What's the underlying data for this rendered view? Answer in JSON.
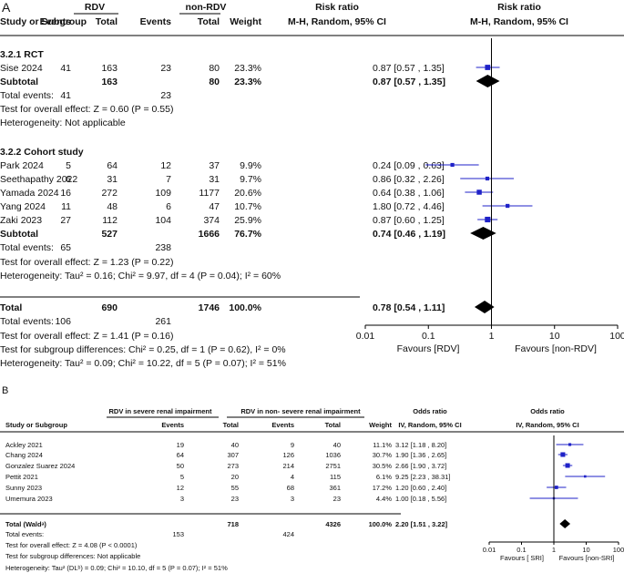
{
  "chart_data": [
    {
      "type": "forest",
      "panel_label": "A",
      "header": {
        "group1": "RDV",
        "group2": "non-RDV",
        "study_col": "Study or Subgroup",
        "events": "Events",
        "total": "Total",
        "weight": "Weight",
        "effect_title": "Risk ratio",
        "effect_method": "M-H, Random, 95% CI",
        "plot_title": "Risk ratio",
        "plot_method": "M-H, Random, 95% CI"
      },
      "subgroups": [
        {
          "title": "3.2.1 RCT",
          "studies": [
            {
              "name": "Sise 2024",
              "e1": "41",
              "n1": "163",
              "e2": "23",
              "n2": "80",
              "weight": "23.3%",
              "ci_text": "0.87 [0.57 , 1.35]",
              "est": 0.87,
              "lo": 0.57,
              "hi": 1.35
            }
          ],
          "subtotal": {
            "label": "Subtotal",
            "n1": "163",
            "n2": "80",
            "weight": "23.3%",
            "ci_text": "0.87 [0.57 , 1.35]",
            "est": 0.87,
            "lo": 0.57,
            "hi": 1.35
          },
          "total_events": {
            "label": "Total events:",
            "e1": "41",
            "e2": "23"
          },
          "notes": [
            "Test for overall effect: Z = 0.60 (P = 0.55)",
            "Heterogeneity: Not applicable"
          ]
        },
        {
          "title": "3.2.2 Cohort study",
          "studies": [
            {
              "name": "Park 2024",
              "e1": "5",
              "n1": "64",
              "e2": "12",
              "n2": "37",
              "weight": "9.9%",
              "ci_text": "0.24 [0.09 , 0.63]",
              "est": 0.24,
              "lo": 0.09,
              "hi": 0.63
            },
            {
              "name": "Seethapathy 2022",
              "e1": "6",
              "n1": "31",
              "e2": "7",
              "n2": "31",
              "weight": "9.7%",
              "ci_text": "0.86 [0.32 , 2.26]",
              "est": 0.86,
              "lo": 0.32,
              "hi": 2.26
            },
            {
              "name": "Yamada 2024",
              "e1": "16",
              "n1": "272",
              "e2": "109",
              "n2": "1177",
              "weight": "20.6%",
              "ci_text": "0.64 [0.38 , 1.06]",
              "est": 0.64,
              "lo": 0.38,
              "hi": 1.06
            },
            {
              "name": "Yang 2024",
              "e1": "11",
              "n1": "48",
              "e2": "6",
              "n2": "47",
              "weight": "10.7%",
              "ci_text": "1.80 [0.72 , 4.46]",
              "est": 1.8,
              "lo": 0.72,
              "hi": 4.46
            },
            {
              "name": "Zaki 2023",
              "e1": "27",
              "n1": "112",
              "e2": "104",
              "n2": "374",
              "weight": "25.9%",
              "ci_text": "0.87 [0.60 , 1.25]",
              "est": 0.87,
              "lo": 0.6,
              "hi": 1.25
            }
          ],
          "subtotal": {
            "label": "Subtotal",
            "n1": "527",
            "n2": "1666",
            "weight": "76.7%",
            "ci_text": "0.74 [0.46 , 1.19]",
            "est": 0.74,
            "lo": 0.46,
            "hi": 1.19
          },
          "total_events": {
            "label": "Total events:",
            "e1": "65",
            "e2": "238"
          },
          "notes": [
            "Test for overall effect: Z = 1.23 (P = 0.22)",
            "Heterogeneity: Tau² = 0.16; Chi² = 9.97, df = 4 (P = 0.04); I² = 60%"
          ]
        }
      ],
      "total": {
        "label": "Total",
        "n1": "690",
        "n2": "1746",
        "weight": "100.0%",
        "ci_text": "0.78 [0.54 , 1.11]",
        "est": 0.78,
        "lo": 0.54,
        "hi": 1.11
      },
      "total_events": {
        "label": "Total events:",
        "e1": "106",
        "e2": "261"
      },
      "footer_notes": [
        "Test for overall effect: Z = 1.41 (P = 0.16)",
        "Test for subgroup differences: Chi² = 0.25, df = 1 (P = 0.62), I² = 0%",
        "Heterogeneity: Tau² = 0.09; Chi² = 10.22, df = 5 (P = 0.07); I² = 51%"
      ],
      "axis": {
        "scale": "log",
        "ticks": [
          0.01,
          0.1,
          1,
          10,
          100
        ],
        "tick_labels": [
          "0.01",
          "0.1",
          "1",
          "10",
          "100"
        ],
        "xlim": [
          0.01,
          100
        ],
        "favours_left": "Favours [RDV]",
        "favours_right": "Favours [non-RDV]"
      },
      "colors": {
        "marker": "#1f22c8",
        "diamond": "#000000"
      }
    },
    {
      "type": "forest",
      "panel_label": "B",
      "header": {
        "group1": "RDV in severe renal impairment",
        "group2": "RDV in non- severe renal impairment",
        "study_col": "Study or Subgroup",
        "events": "Events",
        "total": "Total",
        "weight": "Weight",
        "effect_title": "Odds ratio",
        "effect_method": "IV, Random, 95% CI",
        "plot_title": "Odds ratio",
        "plot_method": "IV, Random, 95% CI"
      },
      "studies": [
        {
          "name": "Ackley 2021",
          "e1": "19",
          "n1": "40",
          "e2": "9",
          "n2": "40",
          "weight": "11.1%",
          "ci_text": "3.12 [1.18 , 8.20]",
          "est": 3.12,
          "lo": 1.18,
          "hi": 8.2
        },
        {
          "name": "Chang 2024",
          "e1": "64",
          "n1": "307",
          "e2": "126",
          "n2": "1036",
          "weight": "30.7%",
          "ci_text": "1.90 [1.36 , 2.65]",
          "est": 1.9,
          "lo": 1.36,
          "hi": 2.65
        },
        {
          "name": "Gonzalez Suarez 2024",
          "e1": "50",
          "n1": "273",
          "e2": "214",
          "n2": "2751",
          "weight": "30.5%",
          "ci_text": "2.66 [1.90 , 3.72]",
          "est": 2.66,
          "lo": 1.9,
          "hi": 3.72
        },
        {
          "name": "Pettit 2021",
          "e1": "5",
          "n1": "20",
          "e2": "4",
          "n2": "115",
          "weight": "6.1%",
          "ci_text": "9.25 [2.23 , 38.31]",
          "est": 9.25,
          "lo": 2.23,
          "hi": 38.31
        },
        {
          "name": "Sunny 2023",
          "e1": "12",
          "n1": "55",
          "e2": "68",
          "n2": "361",
          "weight": "17.2%",
          "ci_text": "1.20 [0.60 , 2.40]",
          "est": 1.2,
          "lo": 0.6,
          "hi": 2.4
        },
        {
          "name": "Umemura 2023",
          "e1": "3",
          "n1": "23",
          "e2": "3",
          "n2": "23",
          "weight": "4.4%",
          "ci_text": "1.00 [0.18 , 5.56]",
          "est": 1.0,
          "lo": 0.18,
          "hi": 5.56
        }
      ],
      "total": {
        "label": "Total (Waldᵃ)",
        "n1": "718",
        "n2": "4326",
        "weight": "100.0%",
        "ci_text": "2.20 [1.51 , 3.22]",
        "est": 2.2,
        "lo": 1.51,
        "hi": 3.22
      },
      "total_events": {
        "label": "Total events:",
        "e1": "153",
        "e2": "424"
      },
      "footer_notes": [
        "Test for overall effect: Z = 4.08 (P < 0.0001)",
        "Test for subgroup differences: Not applicable",
        "Heterogeneity: Tau² (DLᵇ) = 0.09; Chi² = 10.10, df = 5 (P = 0.07); I² = 51%"
      ],
      "axis": {
        "scale": "log",
        "ticks": [
          0.01,
          0.1,
          1,
          10,
          100
        ],
        "tick_labels": [
          "0.01",
          "0.1",
          "1",
          "10",
          "100"
        ],
        "xlim": [
          0.01,
          100
        ],
        "favours_left": "Favours [ SRI]",
        "favours_right": "Favours [non-SRI]"
      },
      "colors": {
        "marker": "#1f22c8",
        "diamond": "#000000"
      }
    }
  ]
}
